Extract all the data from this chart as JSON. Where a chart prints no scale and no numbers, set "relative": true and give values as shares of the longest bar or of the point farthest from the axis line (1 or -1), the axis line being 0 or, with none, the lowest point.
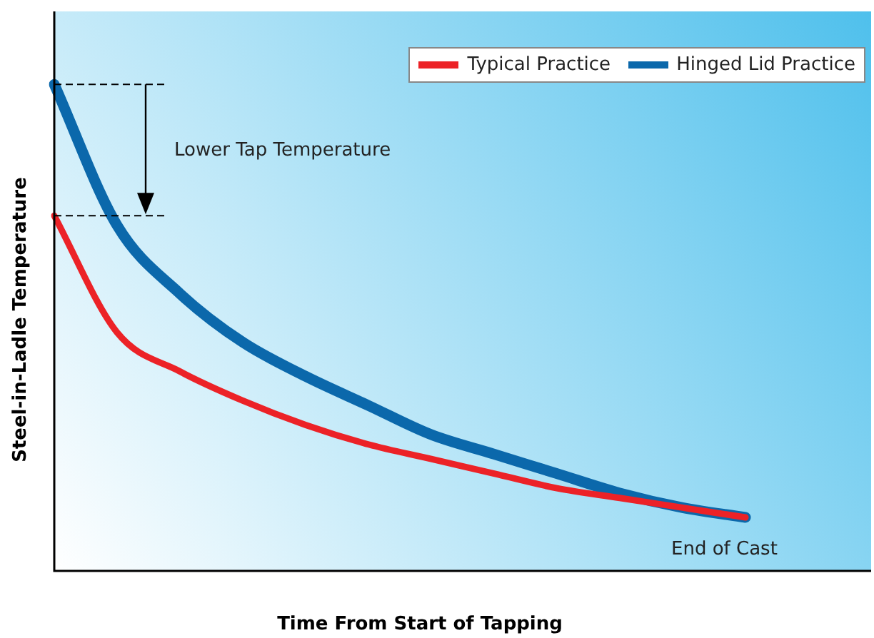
{
  "chart_data": {
    "type": "line",
    "relative": true,
    "xlabel": "Time From Start of Tapping",
    "ylabel": "Steel-in-Ladle Temperature",
    "legend": "top right",
    "categories": [
      null,
      null,
      null,
      null,
      null,
      null,
      null,
      null,
      null,
      null,
      null,
      null,
      null,
      null
    ],
    "series": [
      {
        "name": "Typical Practice",
        "color": "#ec2227",
        "values": [
          0.73,
          0.49,
          0.41,
          0.35,
          0.3,
          0.26,
          0.23,
          0.2,
          0.17,
          0.15,
          0.13,
          0.11,
          null,
          null
        ]
      },
      {
        "name": "Hinged Lid Practice",
        "color": "#0b68ab",
        "values": [
          1,
          0.71,
          0.57,
          0.47,
          0.4,
          0.34,
          0.28,
          0.24,
          0.2,
          0.16,
          0.13,
          0.11,
          null,
          null
        ]
      }
    ],
    "annotations": [
      "Lower Tap Temperature",
      "End of Cast"
    ]
  }
}
